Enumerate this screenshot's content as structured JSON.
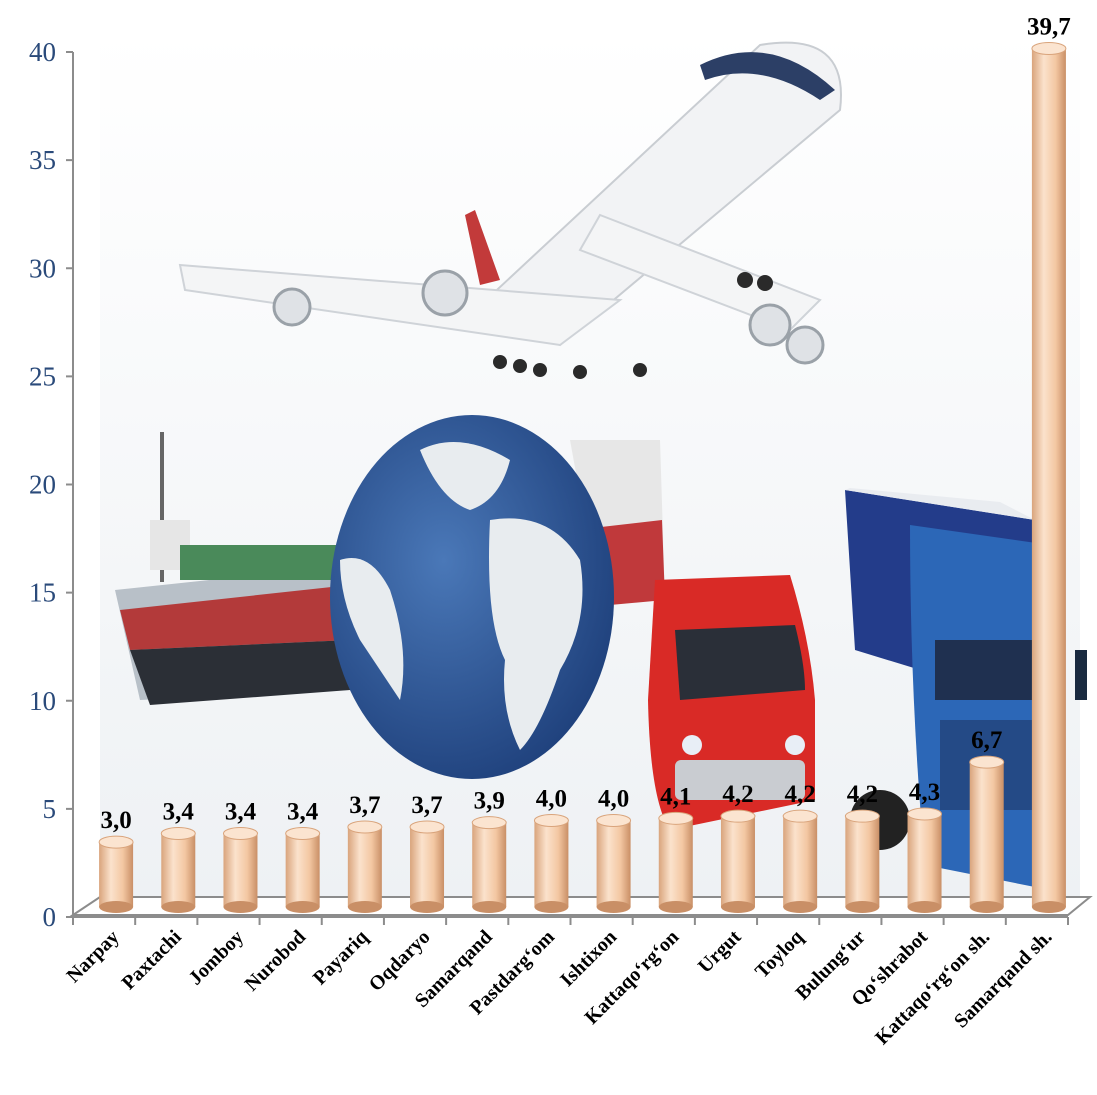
{
  "chart_data": {
    "type": "bar",
    "title": "",
    "xlabel": "",
    "ylabel": "",
    "ylim": [
      0,
      40
    ],
    "yticks": [
      "0",
      "5",
      "10",
      "15",
      "20",
      "25",
      "30",
      "35",
      "40"
    ],
    "grid": false,
    "bar_color": "#f3c7a2",
    "categories": [
      "Narpay",
      "Paxtachi",
      "Jomboy",
      "Nurobod",
      "Payariq",
      "Oqdaryo",
      "Samarqand",
      "Pastdarg‘om",
      "Ishtixon",
      "Kattaqo‘rg‘on",
      "Urgut",
      "Toyloq",
      "Bulung‘ur",
      "Qo‘shrabot",
      "Kattaqo‘rg‘on sh.",
      "Samarqand  sh."
    ],
    "values": [
      3.0,
      3.4,
      3.4,
      3.4,
      3.7,
      3.7,
      3.9,
      4.0,
      4.0,
      4.1,
      4.2,
      4.2,
      4.2,
      4.3,
      6.7,
      39.7
    ],
    "data_labels": [
      "3,0",
      "3,4",
      "3,4",
      "3,4",
      "3,7",
      "3,7",
      "3,9",
      "4,0",
      "4,0",
      "4,1",
      "4,2",
      "4,2",
      "4,2",
      "4,3",
      "6,7",
      "39,7"
    ],
    "background_image": "transport-collage-airplane-ship-globe-van-truck"
  }
}
